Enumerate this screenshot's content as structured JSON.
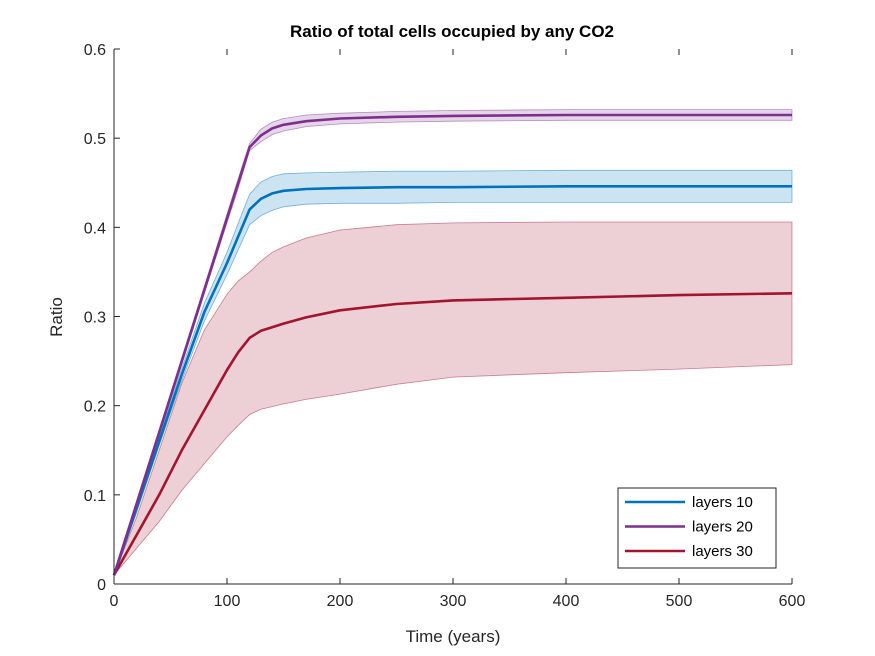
{
  "chart_data": {
    "type": "line",
    "title": "Ratio of total cells occupied by any CO2",
    "xlabel": "Time (years)",
    "ylabel": "Ratio",
    "xlim": [
      0,
      600
    ],
    "ylim": [
      0,
      0.6
    ],
    "xticks": [
      0,
      100,
      200,
      300,
      400,
      500,
      600
    ],
    "xtick_labels": [
      "0",
      "100",
      "200",
      "300",
      "400",
      "500",
      "600"
    ],
    "yticks": [
      0,
      0.1,
      0.2,
      0.3,
      0.4,
      0.5,
      0.6
    ],
    "ytick_labels": [
      "0",
      "0.1",
      "0.2",
      "0.3",
      "0.4",
      "0.5",
      "0.6"
    ],
    "grid": false,
    "legend_position": "bottom-right",
    "x": [
      0,
      20,
      40,
      60,
      80,
      100,
      110,
      120,
      130,
      140,
      150,
      170,
      200,
      250,
      300,
      400,
      500,
      600
    ],
    "series": [
      {
        "name": "layers 10",
        "color": "#0072BD",
        "values": [
          0.01,
          0.085,
          0.16,
          0.235,
          0.305,
          0.36,
          0.39,
          0.42,
          0.432,
          0.438,
          0.441,
          0.443,
          0.444,
          0.445,
          0.445,
          0.446,
          0.446,
          0.446
        ],
        "lower": [
          0.01,
          0.08,
          0.155,
          0.228,
          0.295,
          0.347,
          0.375,
          0.403,
          0.413,
          0.419,
          0.423,
          0.426,
          0.427,
          0.427,
          0.428,
          0.428,
          0.428,
          0.428
        ],
        "upper": [
          0.01,
          0.09,
          0.165,
          0.242,
          0.315,
          0.372,
          0.405,
          0.437,
          0.451,
          0.457,
          0.46,
          0.461,
          0.462,
          0.463,
          0.463,
          0.464,
          0.464,
          0.464
        ]
      },
      {
        "name": "layers 20",
        "color": "#7E2F8E",
        "values": [
          0.01,
          0.09,
          0.17,
          0.25,
          0.33,
          0.41,
          0.45,
          0.49,
          0.503,
          0.511,
          0.515,
          0.519,
          0.522,
          0.524,
          0.525,
          0.526,
          0.526,
          0.526
        ],
        "lower": [
          0.01,
          0.087,
          0.167,
          0.246,
          0.326,
          0.405,
          0.444,
          0.486,
          0.496,
          0.504,
          0.508,
          0.513,
          0.516,
          0.518,
          0.519,
          0.52,
          0.52,
          0.52
        ],
        "upper": [
          0.01,
          0.093,
          0.173,
          0.254,
          0.334,
          0.415,
          0.455,
          0.494,
          0.51,
          0.518,
          0.522,
          0.526,
          0.528,
          0.53,
          0.531,
          0.532,
          0.532,
          0.532
        ]
      },
      {
        "name": "layers 30",
        "color": "#A2142F",
        "values": [
          0.01,
          0.055,
          0.1,
          0.15,
          0.195,
          0.24,
          0.26,
          0.276,
          0.284,
          0.288,
          0.292,
          0.299,
          0.307,
          0.314,
          0.318,
          0.321,
          0.324,
          0.326
        ],
        "lower": [
          0.01,
          0.04,
          0.07,
          0.105,
          0.135,
          0.165,
          0.178,
          0.19,
          0.196,
          0.199,
          0.202,
          0.207,
          0.213,
          0.224,
          0.232,
          0.237,
          0.241,
          0.246
        ],
        "upper": [
          0.01,
          0.075,
          0.15,
          0.225,
          0.285,
          0.325,
          0.34,
          0.35,
          0.362,
          0.372,
          0.378,
          0.388,
          0.397,
          0.403,
          0.405,
          0.406,
          0.406,
          0.406
        ]
      }
    ]
  }
}
